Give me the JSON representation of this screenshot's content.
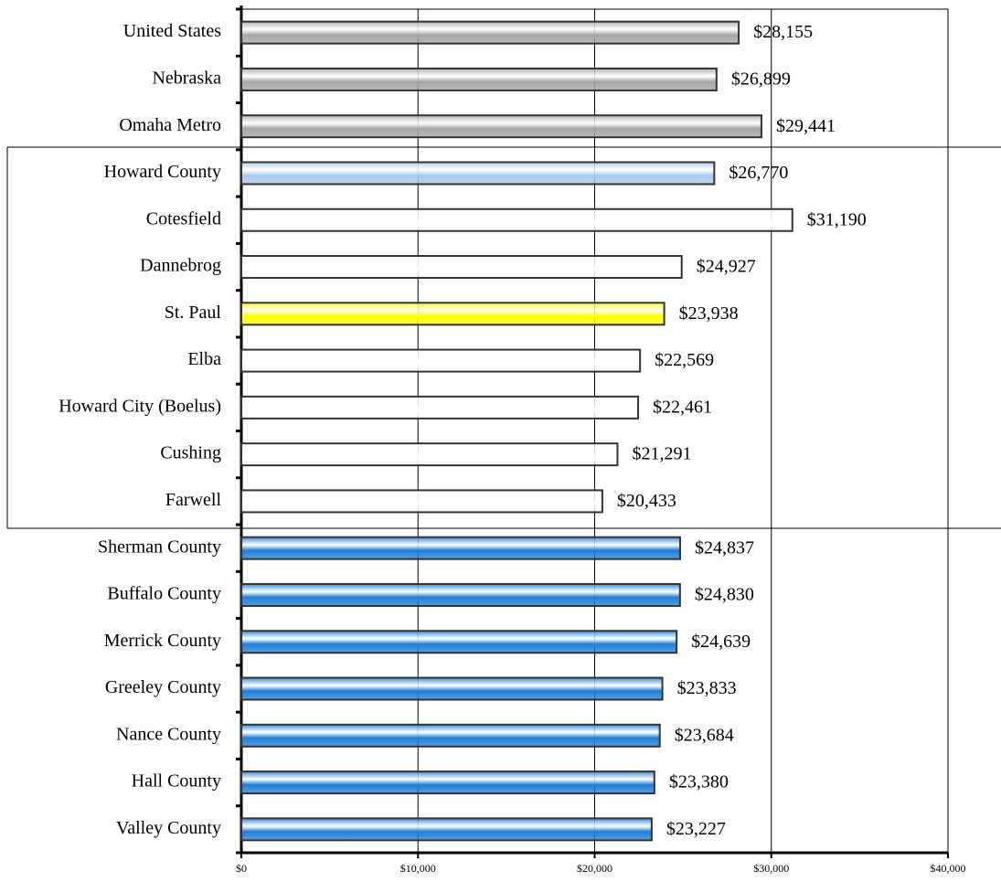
{
  "chart_data": {
    "type": "bar",
    "orientation": "horizontal",
    "categories": [
      "United States",
      "Nebraska",
      "Omaha Metro",
      "Howard County",
      "Cotesfield",
      "Dannebrog",
      "St. Paul",
      "Elba",
      "Howard City (Boelus)",
      "Cushing",
      "Farwell",
      "Sherman County",
      "Buffalo County",
      "Merrick County",
      "Greeley County",
      "Nance County",
      "Hall County",
      "Valley County"
    ],
    "values": [
      28155,
      26899,
      29441,
      26770,
      31190,
      24927,
      23938,
      22569,
      22461,
      21291,
      20433,
      24837,
      24830,
      24639,
      23833,
      23684,
      23380,
      23227
    ],
    "value_labels": [
      "$28,155",
      "$26,899",
      "$29,441",
      "$26,770",
      "$31,190",
      "$24,927",
      "$23,938",
      "$22,569",
      "$22,461",
      "$21,291",
      "$20,433",
      "$24,837",
      "$24,830",
      "$24,639",
      "$23,833",
      "$23,684",
      "$23,380",
      "$23,227"
    ],
    "colors": [
      "#a6a6a6",
      "#a6a6a6",
      "#a6a6a6",
      "#a9c8ec",
      "#ffffff",
      "#ffffff",
      "#ffff00",
      "#ffffff",
      "#ffffff",
      "#ffffff",
      "#ffffff",
      "#1f7fd6",
      "#1f7fd6",
      "#1f7fd6",
      "#1f7fd6",
      "#1f7fd6",
      "#1f7fd6",
      "#1f7fd6"
    ],
    "xlim": [
      0,
      40000
    ],
    "xticks": [
      {
        "value": 0,
        "label": "$0"
      },
      {
        "value": 10000,
        "label": "$10,000"
      },
      {
        "value": 20000,
        "label": "$20,000"
      },
      {
        "value": 30000,
        "label": "$30,000"
      },
      {
        "value": 40000,
        "label": "$40,000"
      }
    ],
    "grid": true
  }
}
